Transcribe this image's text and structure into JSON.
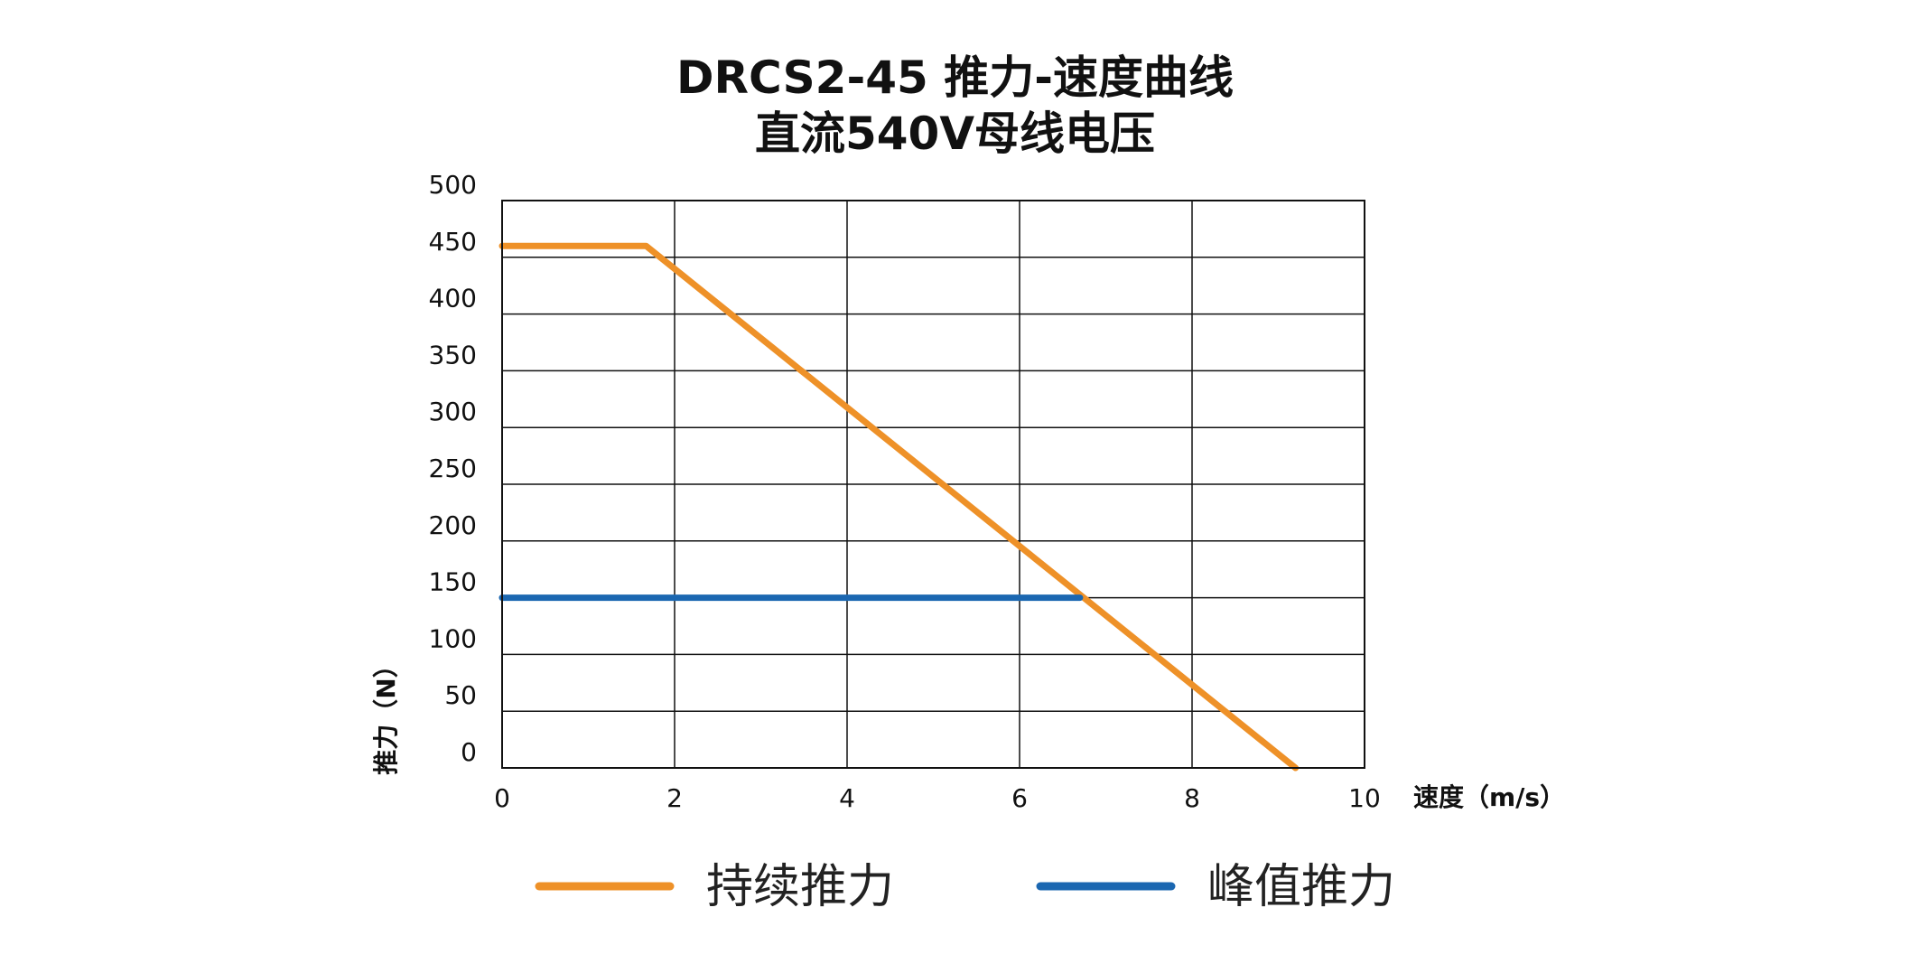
{
  "chart_data": {
    "type": "line",
    "title": "DRCS2-45 推力-速度曲线",
    "subtitle": "直流540V母线电压",
    "xlabel": "速度（m/s）",
    "ylabel": "推力（N）",
    "xlim": [
      0,
      10
    ],
    "ylim": [
      0,
      500
    ],
    "xticks": [
      0,
      2,
      4,
      6,
      8,
      10
    ],
    "yticks": [
      0,
      50,
      100,
      150,
      200,
      250,
      300,
      350,
      400,
      450,
      500
    ],
    "grid": true,
    "legend_position": "bottom",
    "series": [
      {
        "name": "持续推力",
        "color": "#EE9128",
        "x": [
          0,
          1.67,
          9.2
        ],
        "y": [
          460,
          460,
          0
        ]
      },
      {
        "name": "峰值推力",
        "color": "#1B67B1",
        "x": [
          0,
          6.7
        ],
        "y": [
          150,
          150
        ]
      }
    ]
  }
}
